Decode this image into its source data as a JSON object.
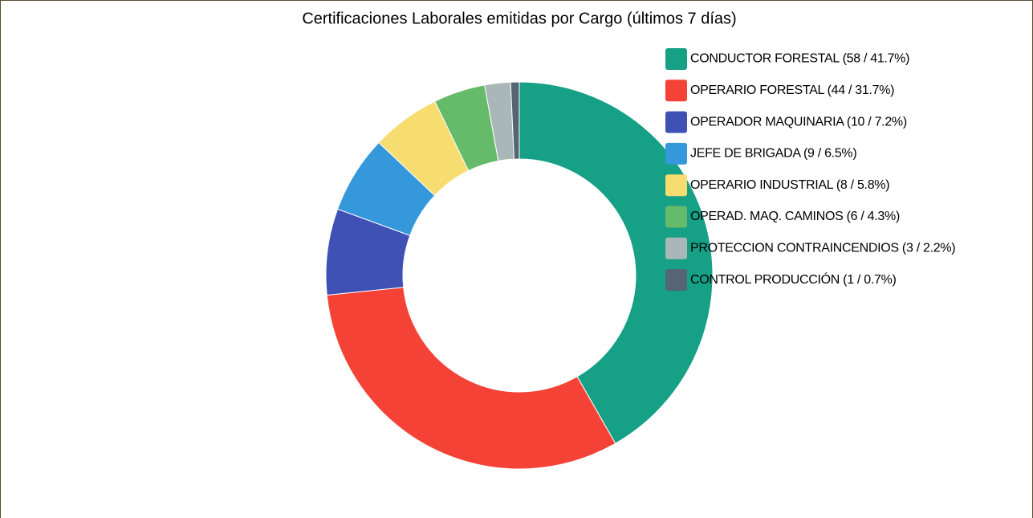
{
  "chart_data": {
    "type": "donut",
    "title": "Certificaciones Laborales emitidas por Cargo (últimos 7 días)",
    "categories": [
      "CONDUCTOR FORESTAL (58 / 41.7%)",
      "OPERARIO FORESTAL (44 / 31.7%)",
      "OPERADOR MAQUINARIA (10 / 7.2%)",
      "JEFE DE BRIGADA (9 / 6.5%)",
      "OPERARIO INDUSTRIAL (8 / 5.8%)",
      "OPERAD. MAQ. CAMINOS (6 / 4.3%)",
      "PROTECCION CONTRAINCENDIOS (3 / 2.2%)",
      "CONTROL PRODUCCIÓN (1 / 0.7%)"
    ],
    "values": [
      58,
      44,
      10,
      9,
      8,
      6,
      3,
      1
    ],
    "colors": [
      "#16a085",
      "#f44336",
      "#3f51b5",
      "#3498db",
      "#f7dc6f",
      "#66bb6a",
      "#aab7b8",
      "#566573"
    ],
    "legend": "top-right"
  }
}
